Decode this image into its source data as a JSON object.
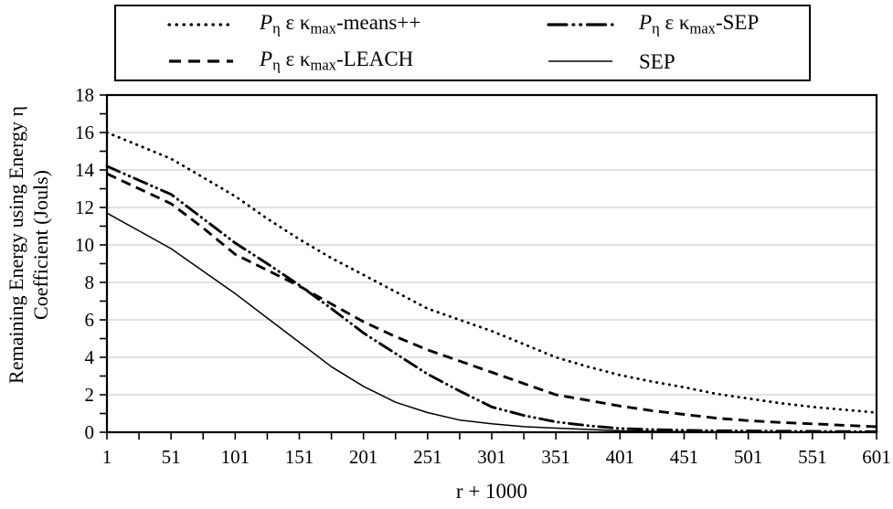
{
  "page": {
    "background": "#ffffff",
    "foreground": "#000000"
  },
  "chart_data": {
    "type": "line",
    "title": "",
    "xlabel": "r + 1000",
    "ylabel_lines": [
      "Remaining Energy using Energy η",
      "Coefficient (Jouls)"
    ],
    "xlim": [
      1,
      601
    ],
    "ylim": [
      0,
      18
    ],
    "x_major_ticks": [
      1,
      51,
      101,
      151,
      201,
      251,
      301,
      351,
      401,
      451,
      501,
      551,
      601
    ],
    "x_minor_ticks": [
      26,
      76,
      126,
      176,
      226,
      276,
      326,
      376,
      426,
      476,
      526,
      576
    ],
    "y_major_ticks": [
      0,
      2,
      4,
      6,
      8,
      10,
      12,
      14,
      16,
      18
    ],
    "y_minor_ticks": [
      1,
      3,
      5,
      7,
      9,
      11,
      13,
      15,
      17
    ],
    "grid": {
      "horizontal_at": [
        2,
        4,
        6,
        8,
        10,
        12,
        14,
        16
      ],
      "color": "#d9d9d9",
      "vertical": false
    },
    "line_color": "#000000",
    "legend": {
      "position": "top",
      "boxed": true,
      "columns": 2,
      "fill_order": "column-major"
    },
    "x": [
      1,
      26,
      51,
      76,
      101,
      126,
      151,
      176,
      201,
      226,
      251,
      276,
      301,
      326,
      351,
      376,
      401,
      426,
      451,
      476,
      501,
      526,
      551,
      576,
      601
    ],
    "series": [
      {
        "name": "Pη ε κmax-means++",
        "style": "dotted",
        "label_parts": [
          {
            "t": "P",
            "s": "it"
          },
          {
            "t": "η",
            "s": "sub"
          },
          {
            "t": " ε κ",
            "s": "n"
          },
          {
            "t": "max",
            "s": "sub"
          },
          {
            "t": "-means++",
            "s": "n"
          }
        ],
        "values": [
          16.0,
          15.3,
          14.6,
          13.6,
          12.6,
          11.4,
          10.3,
          9.3,
          8.4,
          7.5,
          6.6,
          6.0,
          5.4,
          4.7,
          4.0,
          3.5,
          3.05,
          2.7,
          2.4,
          2.05,
          1.8,
          1.55,
          1.35,
          1.2,
          1.05
        ]
      },
      {
        "name": "Pη ε κmax-LEACH",
        "style": "dashed",
        "label_parts": [
          {
            "t": "P",
            "s": "it"
          },
          {
            "t": "η",
            "s": "sub"
          },
          {
            "t": " ε κ",
            "s": "n"
          },
          {
            "t": "max",
            "s": "sub"
          },
          {
            "t": "-LEACH",
            "s": "n"
          }
        ],
        "values": [
          13.8,
          13.0,
          12.2,
          10.9,
          9.5,
          8.65,
          7.8,
          6.85,
          5.9,
          5.1,
          4.4,
          3.8,
          3.2,
          2.6,
          2.0,
          1.7,
          1.4,
          1.15,
          0.95,
          0.75,
          0.62,
          0.52,
          0.45,
          0.37,
          0.3
        ]
      },
      {
        "name": "Pη ε κmax-SEP",
        "style": "dashdotdot",
        "label_parts": [
          {
            "t": "P",
            "s": "it"
          },
          {
            "t": "η",
            "s": "sub"
          },
          {
            "t": " ε κ",
            "s": "n"
          },
          {
            "t": "max",
            "s": "sub"
          },
          {
            "t": "-SEP",
            "s": "n"
          }
        ],
        "values": [
          14.2,
          13.45,
          12.7,
          11.4,
          10.1,
          9.0,
          7.85,
          6.6,
          5.3,
          4.2,
          3.1,
          2.2,
          1.35,
          0.9,
          0.55,
          0.35,
          0.2,
          0.14,
          0.1,
          0.08,
          0.07,
          0.06,
          0.05,
          0.04,
          0.03
        ]
      },
      {
        "name": "SEP",
        "style": "solid",
        "label_parts": [
          {
            "t": "SEP",
            "s": "n"
          }
        ],
        "values": [
          11.7,
          10.75,
          9.8,
          8.6,
          7.4,
          6.1,
          4.8,
          3.5,
          2.45,
          1.6,
          1.05,
          0.65,
          0.45,
          0.3,
          0.22,
          0.15,
          0.08,
          0.05,
          0.03,
          0.02,
          0.02,
          0.01,
          0.01,
          0.005,
          0.0
        ]
      }
    ]
  }
}
